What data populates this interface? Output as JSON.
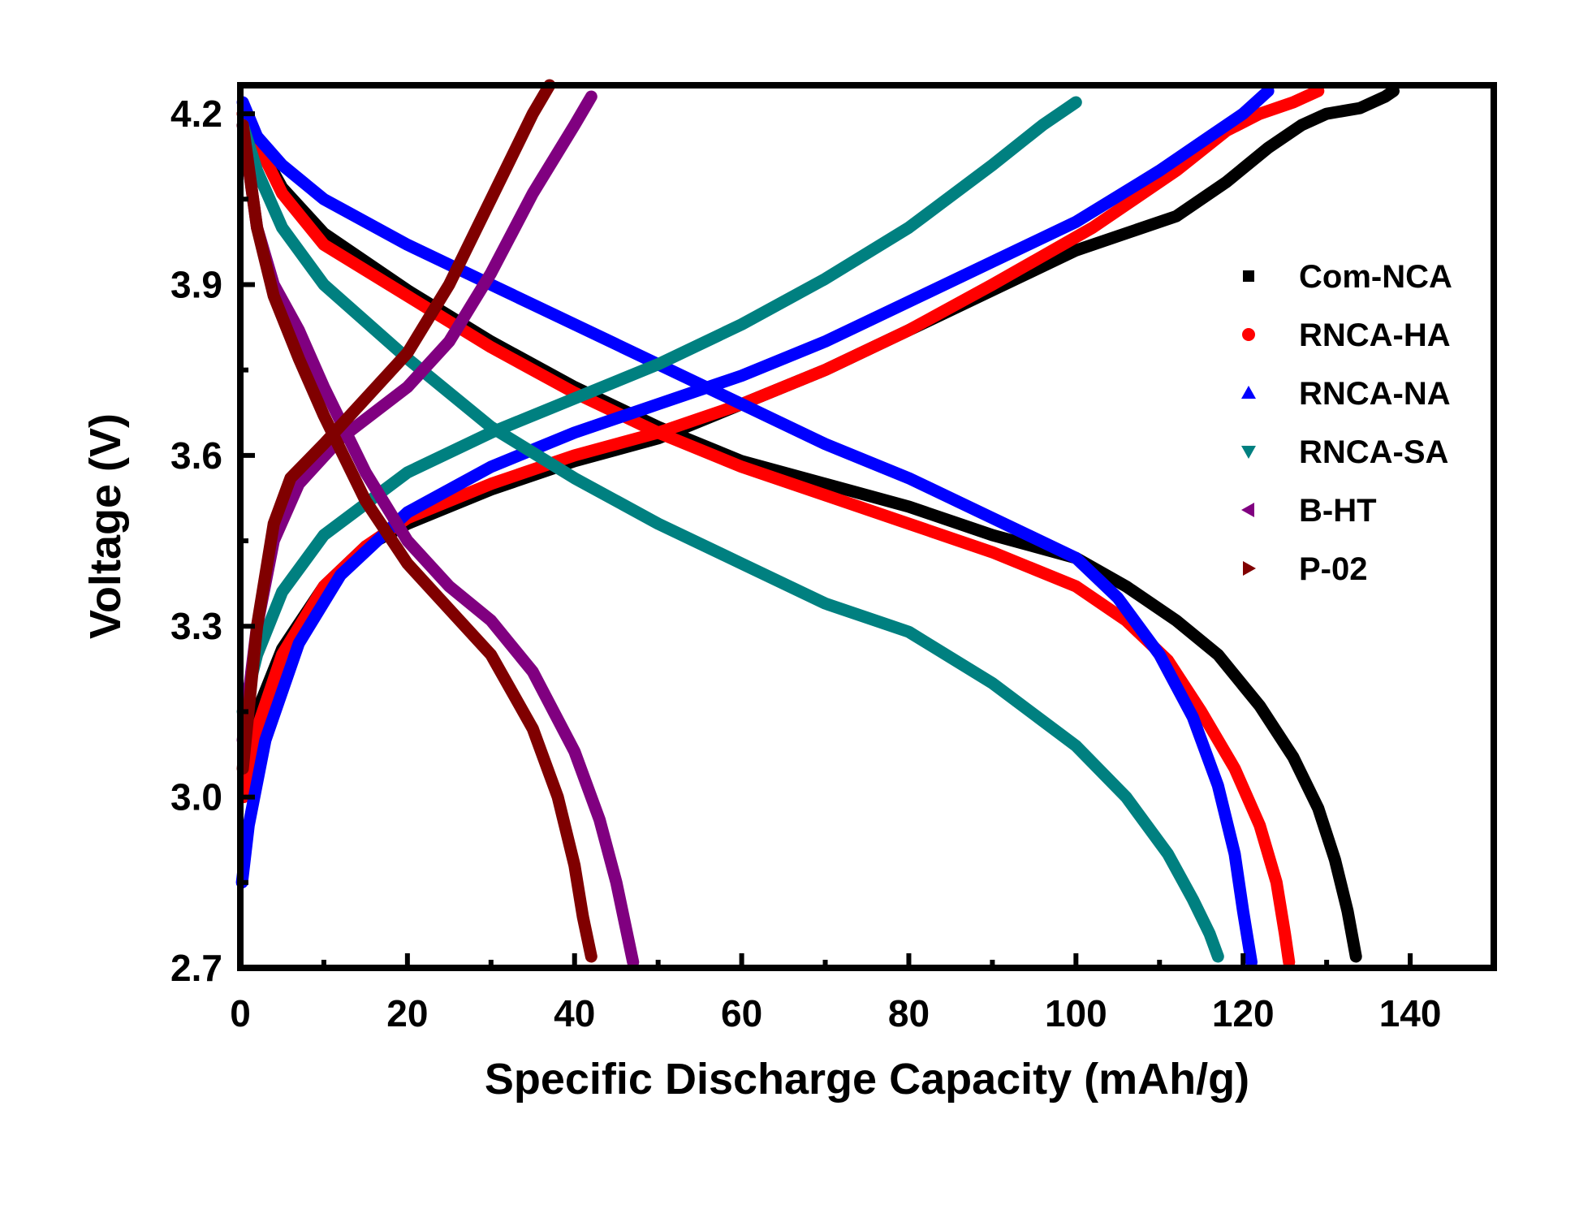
{
  "chart_data": {
    "type": "line",
    "title": "",
    "xlabel": "Specific Discharge Capacity (mAh/g)",
    "ylabel": "Voltage (V)",
    "xlim": [
      0,
      150
    ],
    "ylim": [
      2.7,
      4.25
    ],
    "xticks": [
      0,
      20,
      40,
      60,
      80,
      100,
      120,
      140
    ],
    "yticks": [
      2.7,
      3.0,
      3.3,
      3.6,
      3.9,
      4.2
    ],
    "xtick_labels": [
      "0",
      "20",
      "40",
      "60",
      "80",
      "100",
      "120",
      "140"
    ],
    "ytick_labels": [
      "2.7",
      "3.0",
      "3.3",
      "3.6",
      "3.9",
      "4.2"
    ],
    "grid": false,
    "legend_position": "right",
    "series": [
      {
        "name": "Com-NCA",
        "color": "#000000",
        "marker": "square",
        "charge": [
          [
            0.5,
            3.05
          ],
          [
            2,
            3.15
          ],
          [
            5,
            3.26
          ],
          [
            10,
            3.37
          ],
          [
            15,
            3.44
          ],
          [
            20,
            3.48
          ],
          [
            30,
            3.54
          ],
          [
            40,
            3.59
          ],
          [
            50,
            3.63
          ],
          [
            60,
            3.69
          ],
          [
            70,
            3.75
          ],
          [
            80,
            3.82
          ],
          [
            90,
            3.89
          ],
          [
            100,
            3.96
          ],
          [
            112,
            4.02
          ],
          [
            118,
            4.08
          ],
          [
            123,
            4.14
          ],
          [
            127,
            4.18
          ],
          [
            130,
            4.2
          ],
          [
            134,
            4.21
          ],
          [
            137,
            4.23
          ],
          [
            138,
            4.24
          ]
        ],
        "discharge": [
          [
            0.3,
            4.2
          ],
          [
            2,
            4.15
          ],
          [
            5,
            4.07
          ],
          [
            10,
            3.99
          ],
          [
            20,
            3.89
          ],
          [
            30,
            3.8
          ],
          [
            40,
            3.72
          ],
          [
            50,
            3.65
          ],
          [
            60,
            3.59
          ],
          [
            70,
            3.55
          ],
          [
            80,
            3.51
          ],
          [
            90,
            3.46
          ],
          [
            100,
            3.42
          ],
          [
            106,
            3.37
          ],
          [
            112,
            3.31
          ],
          [
            117,
            3.25
          ],
          [
            122,
            3.16
          ],
          [
            126,
            3.07
          ],
          [
            129,
            2.98
          ],
          [
            131,
            2.89
          ],
          [
            132.5,
            2.8
          ],
          [
            133.5,
            2.72
          ]
        ]
      },
      {
        "name": "RNCA-HA",
        "color": "#ff0000",
        "marker": "circle",
        "charge": [
          [
            0.4,
            3.0
          ],
          [
            2,
            3.12
          ],
          [
            5,
            3.25
          ],
          [
            10,
            3.37
          ],
          [
            15,
            3.44
          ],
          [
            20,
            3.49
          ],
          [
            30,
            3.55
          ],
          [
            40,
            3.6
          ],
          [
            50,
            3.64
          ],
          [
            60,
            3.69
          ],
          [
            70,
            3.75
          ],
          [
            80,
            3.82
          ],
          [
            90,
            3.9
          ],
          [
            102,
            4.0
          ],
          [
            112,
            4.1
          ],
          [
            118,
            4.17
          ],
          [
            122,
            4.2
          ],
          [
            126,
            4.22
          ],
          [
            129,
            4.24
          ]
        ],
        "discharge": [
          [
            0.3,
            4.2
          ],
          [
            2,
            4.15
          ],
          [
            5,
            4.06
          ],
          [
            10,
            3.97
          ],
          [
            20,
            3.88
          ],
          [
            30,
            3.79
          ],
          [
            40,
            3.71
          ],
          [
            50,
            3.64
          ],
          [
            60,
            3.58
          ],
          [
            70,
            3.53
          ],
          [
            80,
            3.48
          ],
          [
            90,
            3.43
          ],
          [
            100,
            3.37
          ],
          [
            106,
            3.31
          ],
          [
            111,
            3.24
          ],
          [
            115,
            3.15
          ],
          [
            119,
            3.05
          ],
          [
            122,
            2.95
          ],
          [
            124,
            2.85
          ],
          [
            125,
            2.76
          ],
          [
            125.5,
            2.71
          ]
        ]
      },
      {
        "name": "RNCA-NA",
        "color": "#0000ff",
        "marker": "triangle-up",
        "charge": [
          [
            0.2,
            2.85
          ],
          [
            1,
            2.95
          ],
          [
            3,
            3.1
          ],
          [
            7,
            3.27
          ],
          [
            12,
            3.39
          ],
          [
            20,
            3.5
          ],
          [
            30,
            3.58
          ],
          [
            40,
            3.64
          ],
          [
            50,
            3.69
          ],
          [
            60,
            3.74
          ],
          [
            70,
            3.8
          ],
          [
            80,
            3.87
          ],
          [
            90,
            3.94
          ],
          [
            100,
            4.01
          ],
          [
            110,
            4.1
          ],
          [
            116,
            4.16
          ],
          [
            120,
            4.2
          ],
          [
            123,
            4.24
          ]
        ],
        "discharge": [
          [
            0.3,
            4.22
          ],
          [
            2,
            4.16
          ],
          [
            5,
            4.11
          ],
          [
            10,
            4.05
          ],
          [
            20,
            3.97
          ],
          [
            30,
            3.9
          ],
          [
            40,
            3.83
          ],
          [
            50,
            3.76
          ],
          [
            60,
            3.69
          ],
          [
            70,
            3.62
          ],
          [
            80,
            3.56
          ],
          [
            90,
            3.49
          ],
          [
            100,
            3.42
          ],
          [
            105,
            3.35
          ],
          [
            110,
            3.25
          ],
          [
            114,
            3.14
          ],
          [
            117,
            3.02
          ],
          [
            119,
            2.9
          ],
          [
            120,
            2.8
          ],
          [
            121,
            2.71
          ]
        ]
      },
      {
        "name": "RNCA-SA",
        "color": "#008080",
        "marker": "triangle-down",
        "charge": [
          [
            0.3,
            3.15
          ],
          [
            2,
            3.25
          ],
          [
            5,
            3.36
          ],
          [
            10,
            3.46
          ],
          [
            20,
            3.57
          ],
          [
            30,
            3.64
          ],
          [
            40,
            3.7
          ],
          [
            50,
            3.76
          ],
          [
            60,
            3.83
          ],
          [
            70,
            3.91
          ],
          [
            80,
            4.0
          ],
          [
            90,
            4.11
          ],
          [
            96,
            4.18
          ],
          [
            100,
            4.22
          ]
        ],
        "discharge": [
          [
            0.3,
            4.18
          ],
          [
            2,
            4.1
          ],
          [
            5,
            4.0
          ],
          [
            10,
            3.9
          ],
          [
            20,
            3.77
          ],
          [
            30,
            3.65
          ],
          [
            40,
            3.56
          ],
          [
            50,
            3.48
          ],
          [
            60,
            3.41
          ],
          [
            70,
            3.34
          ],
          [
            80,
            3.29
          ],
          [
            90,
            3.2
          ],
          [
            100,
            3.09
          ],
          [
            106,
            3.0
          ],
          [
            111,
            2.9
          ],
          [
            114,
            2.82
          ],
          [
            116,
            2.76
          ],
          [
            117,
            2.72
          ]
        ]
      },
      {
        "name": "B-HT",
        "color": "#800080",
        "marker": "triangle-left",
        "charge": [
          [
            0.3,
            3.1
          ],
          [
            2,
            3.3
          ],
          [
            4,
            3.45
          ],
          [
            7,
            3.55
          ],
          [
            12,
            3.63
          ],
          [
            20,
            3.72
          ],
          [
            25,
            3.8
          ],
          [
            30,
            3.92
          ],
          [
            35,
            4.06
          ],
          [
            40,
            4.18
          ],
          [
            42,
            4.23
          ]
        ],
        "discharge": [
          [
            0.3,
            4.18
          ],
          [
            2,
            4.0
          ],
          [
            4,
            3.9
          ],
          [
            7,
            3.82
          ],
          [
            10,
            3.72
          ],
          [
            15,
            3.57
          ],
          [
            20,
            3.45
          ],
          [
            25,
            3.37
          ],
          [
            30,
            3.31
          ],
          [
            35,
            3.22
          ],
          [
            40,
            3.08
          ],
          [
            43,
            2.96
          ],
          [
            45,
            2.85
          ],
          [
            46,
            2.78
          ],
          [
            47,
            2.71
          ]
        ]
      },
      {
        "name": "P-02",
        "color": "#800000",
        "marker": "triangle-right",
        "charge": [
          [
            0.3,
            3.05
          ],
          [
            2,
            3.3
          ],
          [
            4,
            3.48
          ],
          [
            6,
            3.56
          ],
          [
            10,
            3.62
          ],
          [
            15,
            3.7
          ],
          [
            20,
            3.78
          ],
          [
            25,
            3.9
          ],
          [
            30,
            4.05
          ],
          [
            35,
            4.2
          ],
          [
            37,
            4.25
          ]
        ],
        "discharge": [
          [
            0.3,
            4.18
          ],
          [
            2,
            4.0
          ],
          [
            4,
            3.88
          ],
          [
            7,
            3.77
          ],
          [
            10,
            3.67
          ],
          [
            15,
            3.52
          ],
          [
            20,
            3.41
          ],
          [
            25,
            3.33
          ],
          [
            30,
            3.25
          ],
          [
            35,
            3.12
          ],
          [
            38,
            3.0
          ],
          [
            40,
            2.88
          ],
          [
            41,
            2.79
          ],
          [
            42,
            2.72
          ]
        ]
      }
    ]
  }
}
